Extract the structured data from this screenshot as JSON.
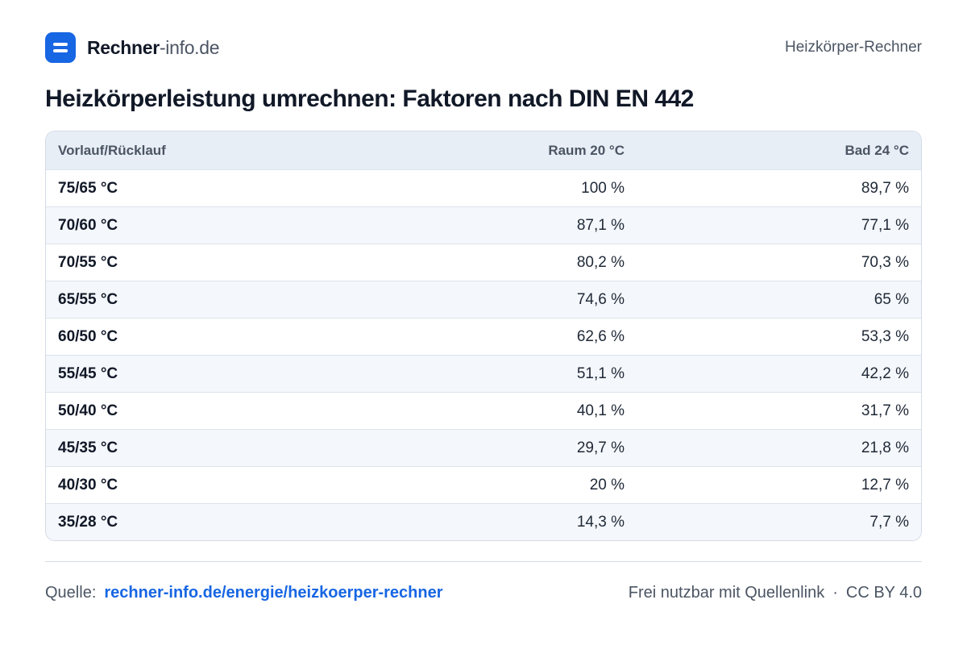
{
  "brand": {
    "strong": "Rechner",
    "light": "-info.de"
  },
  "header": {
    "right": "Heizkörper-Rechner"
  },
  "title": "Heizkörperleistung umrechnen: Faktoren nach DIN EN 442",
  "table": {
    "headers": [
      "Vorlauf/Rücklauf",
      "Raum 20 °C",
      "Bad 24 °C"
    ],
    "rows": [
      [
        "75/65 °C",
        "100 %",
        "89,7 %"
      ],
      [
        "70/60 °C",
        "87,1 %",
        "77,1 %"
      ],
      [
        "70/55 °C",
        "80,2 %",
        "70,3 %"
      ],
      [
        "65/55 °C",
        "74,6 %",
        "65 %"
      ],
      [
        "60/50 °C",
        "62,6 %",
        "53,3 %"
      ],
      [
        "55/45 °C",
        "51,1 %",
        "42,2 %"
      ],
      [
        "50/40 °C",
        "40,1 %",
        "31,7 %"
      ],
      [
        "45/35 °C",
        "29,7 %",
        "21,8 %"
      ],
      [
        "40/30 °C",
        "20 %",
        "12,7 %"
      ],
      [
        "35/28 °C",
        "14,3 %",
        "7,7 %"
      ]
    ]
  },
  "footer": {
    "source_label": "Quelle:",
    "source_link": "rechner-info.de/energie/heizkoerper-rechner",
    "license_text": "Frei nutzbar mit Quellenlink",
    "separator": "·",
    "license": "CC BY 4.0"
  },
  "colors": {
    "accent": "#1766e3",
    "header_bg": "#e8eef6",
    "stripe": "#f4f7fb"
  },
  "icons": {
    "logo": "equals-logo-icon"
  }
}
